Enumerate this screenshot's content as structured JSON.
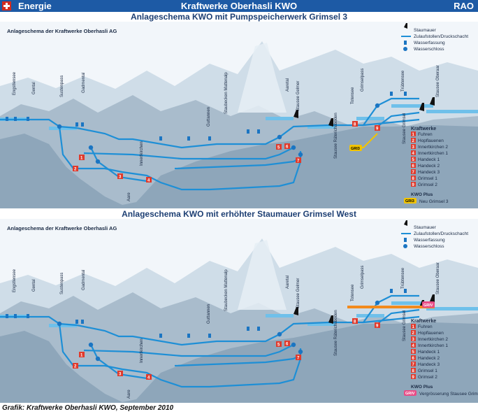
{
  "header": {
    "left_label": "Energie",
    "center_title": "Kraftwerke Oberhasli KWO",
    "right_label": "RAO"
  },
  "panels": [
    {
      "title": "Anlageschema KWO mit Pumpspeicherwerk Grimsel 3",
      "subtitle": "Anlageschema der Kraftwerke Oberhasli AG",
      "legend": [
        "Staumauer",
        "Zulaufstollen/Druckschacht",
        "Wasserfassung",
        "Wasserschloss"
      ],
      "places": [
        "Engstlensee",
        "Gental",
        "Sustenpass",
        "Gadmental",
        "Guttannen",
        "Innertkirchen",
        "Aare",
        "Staubecken Mattenalp",
        "Aaretal",
        "Stausee Gelmer",
        "Stausee Räterichsboden",
        "Totensee",
        "Grimselpass",
        "Trübtensee",
        "Stausee Oberaar",
        "Stausee Grimsel"
      ],
      "kraftwerke_title": "Kraftwerke",
      "kraftwerke": [
        {
          "num": "1",
          "name": "Fuhren"
        },
        {
          "num": "2",
          "name": "Hopflauenen"
        },
        {
          "num": "3",
          "name": "Innertkirchen 2"
        },
        {
          "num": "4",
          "name": "Innertkirchen 1"
        },
        {
          "num": "5",
          "name": "Handeck 1"
        },
        {
          "num": "6",
          "name": "Handeck 2"
        },
        {
          "num": "7",
          "name": "Handeck 3"
        },
        {
          "num": "8",
          "name": "Grimsel 1"
        },
        {
          "num": "9",
          "name": "Grimsel 2"
        }
      ],
      "plus_title": "KWO Plus",
      "plus_badge": "GRI3",
      "plus_text": "Neu Grimsel 3"
    },
    {
      "title": "Anlageschema KWO mit erhöhter Staumauer Grimsel West",
      "subtitle": "Anlageschema der Kraftwerke Oberhasli AG",
      "legend": [
        "Staumauer",
        "Zulaufstollen/Druckschacht",
        "Wasserfassung",
        "Wasserschloss"
      ],
      "places": [
        "Engstlensee",
        "Gental",
        "Sustenpass",
        "Gadmental",
        "Guttannen",
        "Innertkirchen",
        "Aare",
        "Staubecken Mattenalp",
        "Aaretal",
        "Stausee Gelmer",
        "Stausee Räterichsboden",
        "Totensee",
        "Grimselpass",
        "Trübtensee",
        "Stausee Oberaar",
        "Stausee Grimsel"
      ],
      "kraftwerke_title": "Kraftwerke",
      "kraftwerke": [
        {
          "num": "1",
          "name": "Fuhren"
        },
        {
          "num": "2",
          "name": "Hopflauenen"
        },
        {
          "num": "3",
          "name": "Innertkirchen 2"
        },
        {
          "num": "4",
          "name": "Innertkirchen 1"
        },
        {
          "num": "5",
          "name": "Handeck 1"
        },
        {
          "num": "6",
          "name": "Handeck 2"
        },
        {
          "num": "7",
          "name": "Handeck 3"
        },
        {
          "num": "8",
          "name": "Grimsel 1"
        },
        {
          "num": "9",
          "name": "Grimsel 2"
        }
      ],
      "plus_title": "KWO Plus",
      "plus_badge": "GRIV",
      "plus_text": "Vergrösserung Stausee Grimsel"
    }
  ],
  "footer": "Grafik: Kraftwerke Oberhasli KWO, September 2010",
  "colors": {
    "header_bg": "#1d5aa5",
    "title_text": "#1d3f73",
    "pipe": "#1e8fd6",
    "plant": "#e03a2c",
    "gri3": "#f2c400",
    "griv": "#e84c86",
    "dam_raise": "#f28a1c"
  }
}
